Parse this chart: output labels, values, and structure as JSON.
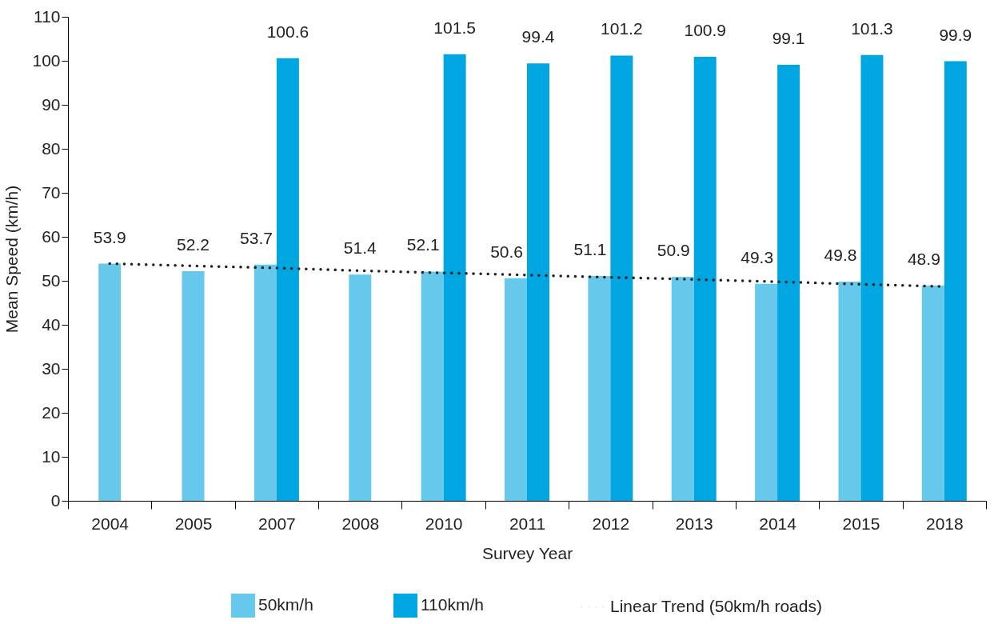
{
  "chart_data": {
    "type": "bar",
    "xlabel": "Survey Year",
    "ylabel": "Mean Speed (km/h)",
    "categories": [
      "2004",
      "2005",
      "2007",
      "2008",
      "2010",
      "2011",
      "2012",
      "2013",
      "2014",
      "2015",
      "2018"
    ],
    "series": [
      {
        "name": "50km/h",
        "color": "#66c9ec",
        "values": [
          53.9,
          52.2,
          53.7,
          51.4,
          52.1,
          50.6,
          51.1,
          50.9,
          49.3,
          49.8,
          48.9
        ],
        "value_labels": [
          "53.9",
          "52.2",
          "53.7",
          "51.4",
          "52.1",
          "50.6",
          "51.1",
          "50.9",
          "49.3",
          "49.8",
          "48.9"
        ]
      },
      {
        "name": "110km/h",
        "color": "#00a6df",
        "values": [
          null,
          null,
          100.6,
          null,
          101.5,
          99.4,
          101.2,
          100.9,
          99.1,
          101.3,
          99.9
        ],
        "value_labels": [
          null,
          null,
          "100.6",
          null,
          "101.5",
          "99.4",
          "101.2",
          "100.9",
          "99.1",
          "101.3",
          "99.9"
        ]
      },
      {
        "name": "Linear Trend (50km/h roads)",
        "type": "line",
        "color": "#222222",
        "line_style": "dotted",
        "values": [
          53.9,
          53.4,
          52.9,
          52.3,
          51.8,
          51.3,
          50.8,
          50.3,
          49.8,
          49.2,
          48.7
        ]
      }
    ],
    "ylim": [
      0,
      110
    ],
    "yticks": [
      0,
      10,
      20,
      30,
      40,
      50,
      60,
      70,
      80,
      90,
      100,
      110
    ],
    "grid": false,
    "legend": "bottom"
  }
}
